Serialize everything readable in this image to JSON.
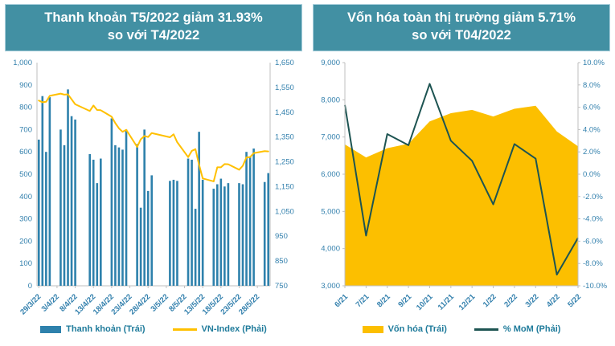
{
  "colors": {
    "title_bg": "#4290a3",
    "bar": "#2e81ac",
    "vn_index_line": "#ffc000",
    "area": "#fcbf00",
    "mom_line": "#1d5452",
    "axis_line": "#bfbfbf",
    "tick_text": "#3380ad",
    "legend_text": "#1f7b9b"
  },
  "left_panel": {
    "title_line1": "Thanh khoản T5/2022 giảm 31.93%",
    "title_line2": "so với T4/2022",
    "legend": [
      {
        "label": "Thanh khoản (Trái)",
        "swatch": "bar",
        "color": "#2e81ac"
      },
      {
        "label": "VN-Index (Phải)",
        "swatch": "line",
        "color": "#ffc000"
      }
    ]
  },
  "right_panel": {
    "title_line1": "Vốn hóa toàn thị trường giảm 5.71%",
    "title_line2": "so với T04/2022",
    "legend": [
      {
        "label": "Vốn hóa (Trái)",
        "swatch": "bar",
        "color": "#fcbf00"
      },
      {
        "label": "% MoM (Phải)",
        "swatch": "line",
        "color": "#1d5452"
      }
    ]
  },
  "chart_data": [
    {
      "type": "bar+line",
      "title": "Thanh khoản T5/2022 giảm 31.93% so với T4/2022",
      "bar_series_name": "Thanh khoản (Trái)",
      "line_series_name": "VN-Index (Phải)",
      "left_axis": {
        "min": 0,
        "max": 1000,
        "step": 100,
        "tick_labels": [
          "0",
          "100",
          "200",
          "300",
          "400",
          "500",
          "600",
          "700",
          "800",
          "900",
          "1,000"
        ]
      },
      "right_axis": {
        "min": 750,
        "max": 1650,
        "step": 100,
        "tick_labels": [
          "750",
          "850",
          "950",
          "1,050",
          "1,150",
          "1,250",
          "1,350",
          "1,450",
          "1,550",
          "1,650"
        ]
      },
      "x_tick_labels": [
        "29/3/22",
        "3/4/22",
        "8/4/22",
        "13/4/22",
        "18/4/22",
        "23/4/22",
        "28/4/22",
        "3/5/22",
        "8/5/22",
        "13/5/22",
        "18/5/22",
        "23/5/22",
        "28/5/22"
      ],
      "days": [
        {
          "date": "29/3/22",
          "liquidity": 655,
          "vn_index": 1497
        },
        {
          "date": "30/3/22",
          "liquidity": 850,
          "vn_index": 1490
        },
        {
          "date": "31/3/22",
          "liquidity": 600,
          "vn_index": 1492
        },
        {
          "date": "1/4/22",
          "liquidity": 845,
          "vn_index": 1516
        },
        {
          "date": "2/4/22",
          "liquidity": null,
          "vn_index": null
        },
        {
          "date": "3/4/22",
          "liquidity": null,
          "vn_index": null
        },
        {
          "date": "4/4/22",
          "liquidity": 700,
          "vn_index": 1525
        },
        {
          "date": "5/4/22",
          "liquidity": 630,
          "vn_index": 1521
        },
        {
          "date": "6/4/22",
          "liquidity": 880,
          "vn_index": 1522
        },
        {
          "date": "7/4/22",
          "liquidity": 760,
          "vn_index": 1502
        },
        {
          "date": "8/4/22",
          "liquidity": 745,
          "vn_index": 1482
        },
        {
          "date": "9/4/22",
          "liquidity": null,
          "vn_index": null
        },
        {
          "date": "10/4/22",
          "liquidity": null,
          "vn_index": null
        },
        {
          "date": "11/4/22",
          "liquidity": null,
          "vn_index": null
        },
        {
          "date": "12/4/22",
          "liquidity": 590,
          "vn_index": 1455
        },
        {
          "date": "13/4/22",
          "liquidity": 565,
          "vn_index": 1477
        },
        {
          "date": "14/4/22",
          "liquidity": 460,
          "vn_index": 1459
        },
        {
          "date": "15/4/22",
          "liquidity": 570,
          "vn_index": 1458
        },
        {
          "date": "16/4/22",
          "liquidity": null,
          "vn_index": null
        },
        {
          "date": "17/4/22",
          "liquidity": null,
          "vn_index": null
        },
        {
          "date": "18/4/22",
          "liquidity": 750,
          "vn_index": 1432
        },
        {
          "date": "19/4/22",
          "liquidity": 630,
          "vn_index": 1406
        },
        {
          "date": "20/4/22",
          "liquidity": 620,
          "vn_index": 1385
        },
        {
          "date": "21/4/22",
          "liquidity": 610,
          "vn_index": 1371
        },
        {
          "date": "22/4/22",
          "liquidity": 700,
          "vn_index": 1379
        },
        {
          "date": "23/4/22",
          "liquidity": null,
          "vn_index": null
        },
        {
          "date": "24/4/22",
          "liquidity": null,
          "vn_index": null
        },
        {
          "date": "25/4/22",
          "liquidity": 635,
          "vn_index": 1310
        },
        {
          "date": "26/4/22",
          "liquidity": 350,
          "vn_index": 1341
        },
        {
          "date": "27/4/22",
          "liquidity": 700,
          "vn_index": 1354
        },
        {
          "date": "28/4/22",
          "liquidity": 425,
          "vn_index": 1350
        },
        {
          "date": "29/4/22",
          "liquidity": 495,
          "vn_index": 1366
        },
        {
          "date": "30/4/22",
          "liquidity": null,
          "vn_index": null
        },
        {
          "date": "1/5/22",
          "liquidity": null,
          "vn_index": null
        },
        {
          "date": "2/5/22",
          "liquidity": null,
          "vn_index": null
        },
        {
          "date": "3/5/22",
          "liquidity": null,
          "vn_index": null
        },
        {
          "date": "4/5/22",
          "liquidity": 470,
          "vn_index": 1349
        },
        {
          "date": "5/5/22",
          "liquidity": 475,
          "vn_index": 1361
        },
        {
          "date": "6/5/22",
          "liquidity": 470,
          "vn_index": 1329
        },
        {
          "date": "7/5/22",
          "liquidity": null,
          "vn_index": null
        },
        {
          "date": "8/5/22",
          "liquidity": null,
          "vn_index": null
        },
        {
          "date": "9/5/22",
          "liquidity": 570,
          "vn_index": 1269
        },
        {
          "date": "10/5/22",
          "liquidity": 565,
          "vn_index": 1294
        },
        {
          "date": "11/5/22",
          "liquidity": 345,
          "vn_index": 1301
        },
        {
          "date": "12/5/22",
          "liquidity": 690,
          "vn_index": 1238
        },
        {
          "date": "13/5/22",
          "liquidity": 475,
          "vn_index": 1183
        },
        {
          "date": "14/5/22",
          "liquidity": null,
          "vn_index": null
        },
        {
          "date": "15/5/22",
          "liquidity": null,
          "vn_index": null
        },
        {
          "date": "16/5/22",
          "liquidity": 435,
          "vn_index": 1171
        },
        {
          "date": "17/5/22",
          "liquidity": 455,
          "vn_index": 1228
        },
        {
          "date": "18/5/22",
          "liquidity": 480,
          "vn_index": 1228
        },
        {
          "date": "19/5/22",
          "liquidity": 445,
          "vn_index": 1241
        },
        {
          "date": "20/5/22",
          "liquidity": 460,
          "vn_index": 1240
        },
        {
          "date": "21/5/22",
          "liquidity": null,
          "vn_index": null
        },
        {
          "date": "22/5/22",
          "liquidity": null,
          "vn_index": null
        },
        {
          "date": "23/5/22",
          "liquidity": 460,
          "vn_index": 1218
        },
        {
          "date": "24/5/22",
          "liquidity": 455,
          "vn_index": 1234
        },
        {
          "date": "25/5/22",
          "liquidity": 600,
          "vn_index": 1268
        },
        {
          "date": "26/5/22",
          "liquidity": 580,
          "vn_index": 1269
        },
        {
          "date": "27/5/22",
          "liquidity": 615,
          "vn_index": 1285
        },
        {
          "date": "28/5/22",
          "liquidity": null,
          "vn_index": null
        },
        {
          "date": "29/5/22",
          "liquidity": null,
          "vn_index": null
        },
        {
          "date": "30/5/22",
          "liquidity": 465,
          "vn_index": 1293
        },
        {
          "date": "31/5/22",
          "liquidity": 505,
          "vn_index": 1292
        }
      ]
    },
    {
      "type": "area+line",
      "title": "Vốn hóa toàn thị trường giảm 5.71% so với T04/2022",
      "left_axis": {
        "min": 3000,
        "max": 9000,
        "step": 1000,
        "tick_labels": [
          "3,000",
          "4,000",
          "5,000",
          "6,000",
          "7,000",
          "8,000",
          "9,000"
        ]
      },
      "right_axis": {
        "min": -10,
        "max": 10,
        "step": 2,
        "tick_labels": [
          "-10.0%",
          "-8.0%",
          "-6.0%",
          "-4.0%",
          "-2.0%",
          "0.0%",
          "2.0%",
          "4.0%",
          "6.0%",
          "8.0%",
          "10.0%"
        ]
      },
      "categories": [
        "6/21",
        "7/21",
        "8/21",
        "9/21",
        "10/21",
        "11/21",
        "12/21",
        "1/22",
        "2/22",
        "3/22",
        "4/22",
        "5/22"
      ],
      "series": [
        {
          "name": "Vốn hóa (Trái)",
          "axis": "left",
          "kind": "area",
          "values": [
            6800,
            6450,
            6700,
            6820,
            7420,
            7640,
            7730,
            7550,
            7760,
            7840,
            7150,
            6750
          ]
        },
        {
          "name": "% MoM (Phải)",
          "axis": "right",
          "kind": "line",
          "values": [
            6.2,
            -5.5,
            3.6,
            2.6,
            8.1,
            3.0,
            1.2,
            -2.7,
            2.7,
            1.4,
            -9.0,
            -5.71
          ]
        }
      ]
    }
  ]
}
